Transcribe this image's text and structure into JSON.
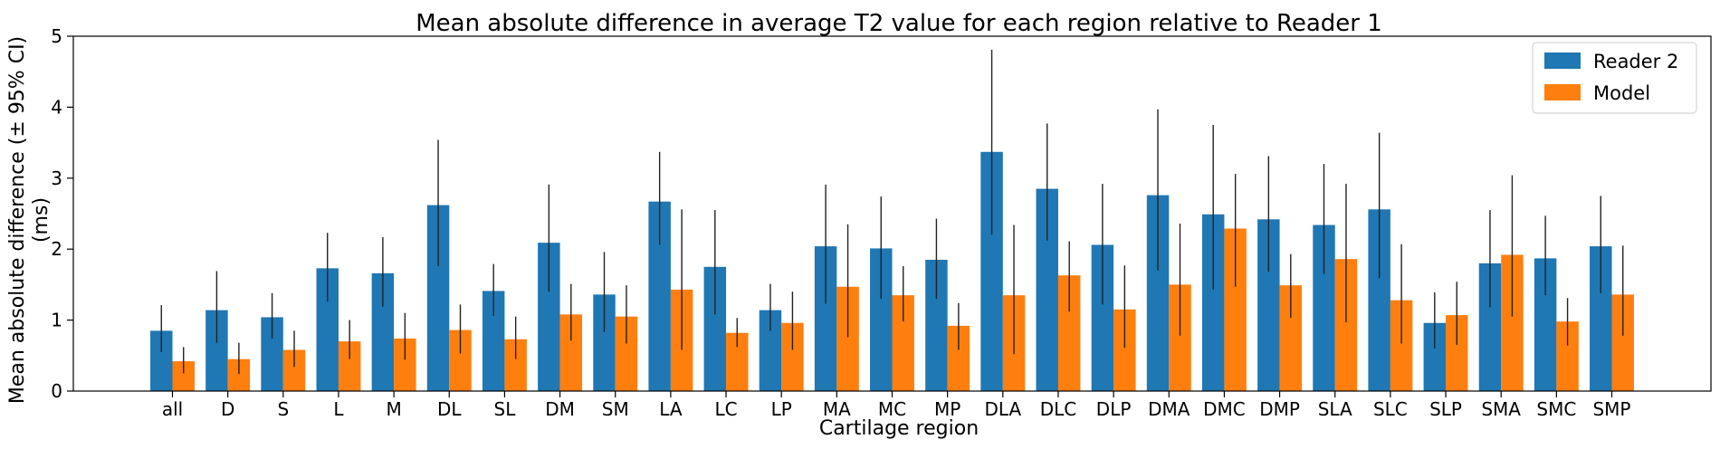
{
  "chart_data": {
    "type": "bar",
    "title": "Mean absolute difference in average T2 value for each region relative to Reader 1",
    "xlabel": "Cartilage region",
    "ylabel": [
      "Mean absolute difference (± 95% CI)",
      "(ms)"
    ],
    "ylim": [
      0,
      5
    ],
    "yticks": [
      0,
      1,
      2,
      3,
      4,
      5
    ],
    "grid": false,
    "legend_position": "top-right",
    "categories": [
      "all",
      "D",
      "S",
      "L",
      "M",
      "DL",
      "SL",
      "DM",
      "SM",
      "LA",
      "LC",
      "LP",
      "MA",
      "MC",
      "MP",
      "DLA",
      "DLC",
      "DLP",
      "DMA",
      "DMC",
      "DMP",
      "SLA",
      "SLC",
      "SLP",
      "SMA",
      "SMC",
      "SMP"
    ],
    "series": [
      {
        "name": "Reader 2",
        "color": "#1f77b4",
        "values": [
          0.85,
          1.14,
          1.04,
          1.73,
          1.66,
          2.62,
          1.41,
          2.09,
          1.36,
          2.67,
          1.75,
          1.14,
          2.04,
          2.01,
          1.85,
          3.37,
          2.85,
          2.06,
          2.76,
          2.49,
          2.42,
          2.34,
          2.56,
          0.96,
          1.8,
          1.87,
          2.04
        ],
        "ci_low": [
          0.55,
          0.68,
          0.74,
          1.26,
          1.19,
          1.76,
          1.06,
          1.4,
          0.83,
          2.06,
          1.08,
          0.85,
          1.23,
          1.3,
          1.3,
          2.2,
          2.12,
          1.22,
          1.7,
          1.43,
          1.68,
          1.65,
          1.59,
          0.6,
          1.18,
          1.35,
          1.38
        ],
        "ci_high": [
          1.21,
          1.69,
          1.38,
          2.23,
          2.17,
          3.54,
          1.79,
          2.91,
          1.96,
          3.37,
          2.55,
          1.51,
          2.91,
          2.74,
          2.43,
          4.81,
          3.77,
          2.92,
          3.97,
          3.75,
          3.31,
          3.2,
          3.64,
          1.39,
          2.55,
          2.47,
          2.75
        ]
      },
      {
        "name": "Model",
        "color": "#ff7f0e",
        "values": [
          0.42,
          0.45,
          0.58,
          0.7,
          0.74,
          0.86,
          0.73,
          1.08,
          1.05,
          1.43,
          0.82,
          0.96,
          1.47,
          1.35,
          0.92,
          1.35,
          1.63,
          1.15,
          1.5,
          2.29,
          1.49,
          1.86,
          1.28,
          1.07,
          1.92,
          0.98,
          1.36
        ],
        "ci_low": [
          0.25,
          0.24,
          0.34,
          0.45,
          0.44,
          0.53,
          0.45,
          0.71,
          0.67,
          0.58,
          0.62,
          0.58,
          0.76,
          0.98,
          0.58,
          0.52,
          1.12,
          0.61,
          0.78,
          1.47,
          1.03,
          0.97,
          0.67,
          0.65,
          1.05,
          0.64,
          0.78
        ],
        "ci_high": [
          0.62,
          0.68,
          0.85,
          1.0,
          1.1,
          1.22,
          1.05,
          1.51,
          1.49,
          2.56,
          1.03,
          1.4,
          2.35,
          1.76,
          1.24,
          2.34,
          2.11,
          1.77,
          2.36,
          3.06,
          1.93,
          2.92,
          2.07,
          1.54,
          3.04,
          1.31,
          2.05
        ]
      }
    ]
  }
}
